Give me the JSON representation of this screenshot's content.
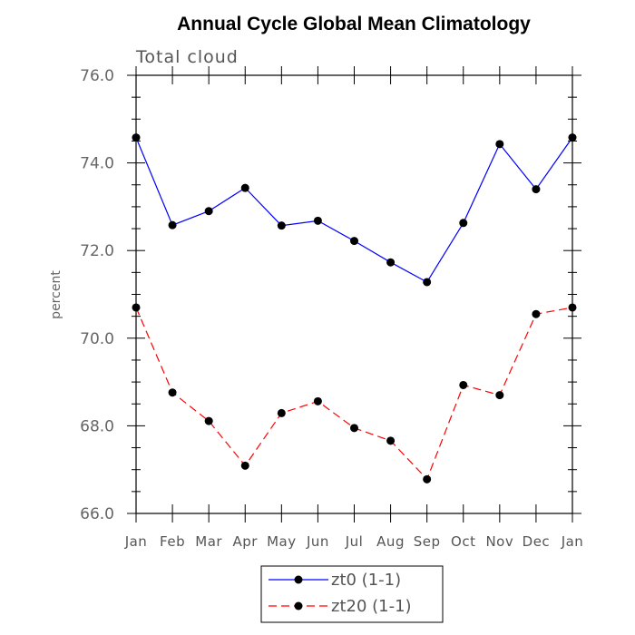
{
  "chart_data": {
    "type": "line",
    "title": "Annual Cycle Global Mean Climatology",
    "subtitle": "Total cloud",
    "xlabel": "",
    "ylabel": "percent",
    "categories": [
      "Jan",
      "Feb",
      "Mar",
      "Apr",
      "May",
      "Jun",
      "Jul",
      "Aug",
      "Sep",
      "Oct",
      "Nov",
      "Dec",
      "Jan"
    ],
    "ylim": [
      66.0,
      76.0
    ],
    "yticks": [
      "66.0",
      "68.0",
      "70.0",
      "72.0",
      "74.0",
      "76.0"
    ],
    "series": [
      {
        "name": "zt0",
        "legend_label": "zt0 (1-1)",
        "color": "#0000ff",
        "dash": "solid",
        "values": [
          74.58,
          72.58,
          72.9,
          73.43,
          72.57,
          72.68,
          72.22,
          71.73,
          71.28,
          72.63,
          74.43,
          73.4,
          74.58
        ]
      },
      {
        "name": "zt20",
        "legend_label": "zt20 (1-1)",
        "color": "#ff0000",
        "dash": "dashed",
        "values": [
          70.7,
          68.76,
          68.11,
          67.09,
          68.29,
          68.56,
          67.95,
          67.66,
          66.78,
          68.93,
          68.7,
          70.55,
          70.7
        ]
      }
    ]
  }
}
